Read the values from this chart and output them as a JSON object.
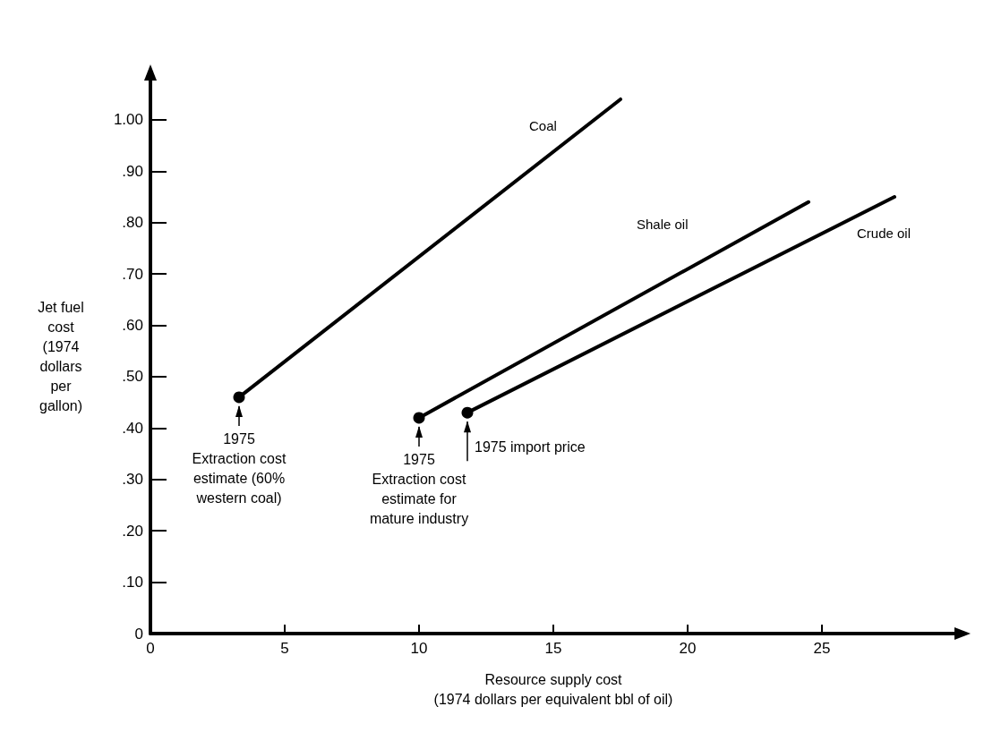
{
  "chart_data": {
    "type": "line",
    "xlabel": "Resource supply cost\n(1974 dollars per equivalent bbl of oil)",
    "ylabel": "Jet fuel\ncost\n(1974\ndollars\nper\ngallon)",
    "series": [
      {
        "name": "Coal",
        "color": "#000000",
        "x": [
          3.3,
          17.5
        ],
        "values": [
          0.46,
          1.04
        ]
      },
      {
        "name": "Shale oil",
        "color": "#000000",
        "x": [
          10,
          24.5
        ],
        "values": [
          0.42,
          0.84
        ]
      },
      {
        "name": "Crude oil",
        "color": "#000000",
        "x": [
          11.8,
          27.7
        ],
        "values": [
          0.43,
          0.85
        ]
      }
    ],
    "xlim": [
      0,
      30
    ],
    "ylim": [
      0,
      1.08
    ],
    "xticks": [
      0,
      5,
      10,
      15,
      20,
      25
    ],
    "yticks": [
      0,
      {
        "value": 0.1,
        "label": ".10"
      },
      {
        "value": 0.2,
        "label": ".20"
      },
      {
        "value": 0.3,
        "label": ".30"
      },
      {
        "value": 0.4,
        "label": ".40"
      },
      {
        "value": 0.5,
        "label": ".50"
      },
      {
        "value": 0.6,
        "label": ".60"
      },
      {
        "value": 0.7,
        "label": ".70"
      },
      {
        "value": 0.8,
        "label": ".80"
      },
      {
        "value": 0.9,
        "label": ".90"
      },
      {
        "value": 1.0,
        "label": "1.00"
      }
    ],
    "annotations": [
      {
        "text": "1975\nExtraction cost\nestimate (60%\nwestern coal)",
        "x": 3.3,
        "y": 0.46
      },
      {
        "text": "1975\nExtraction cost\nestimate for\nmature industry",
        "x": 10,
        "y": 0.42
      },
      {
        "text": "1975 import price",
        "x": 11.8,
        "y": 0.43
      }
    ],
    "marker": "circle",
    "line_style": "solid",
    "grid": false,
    "legend": false
  }
}
